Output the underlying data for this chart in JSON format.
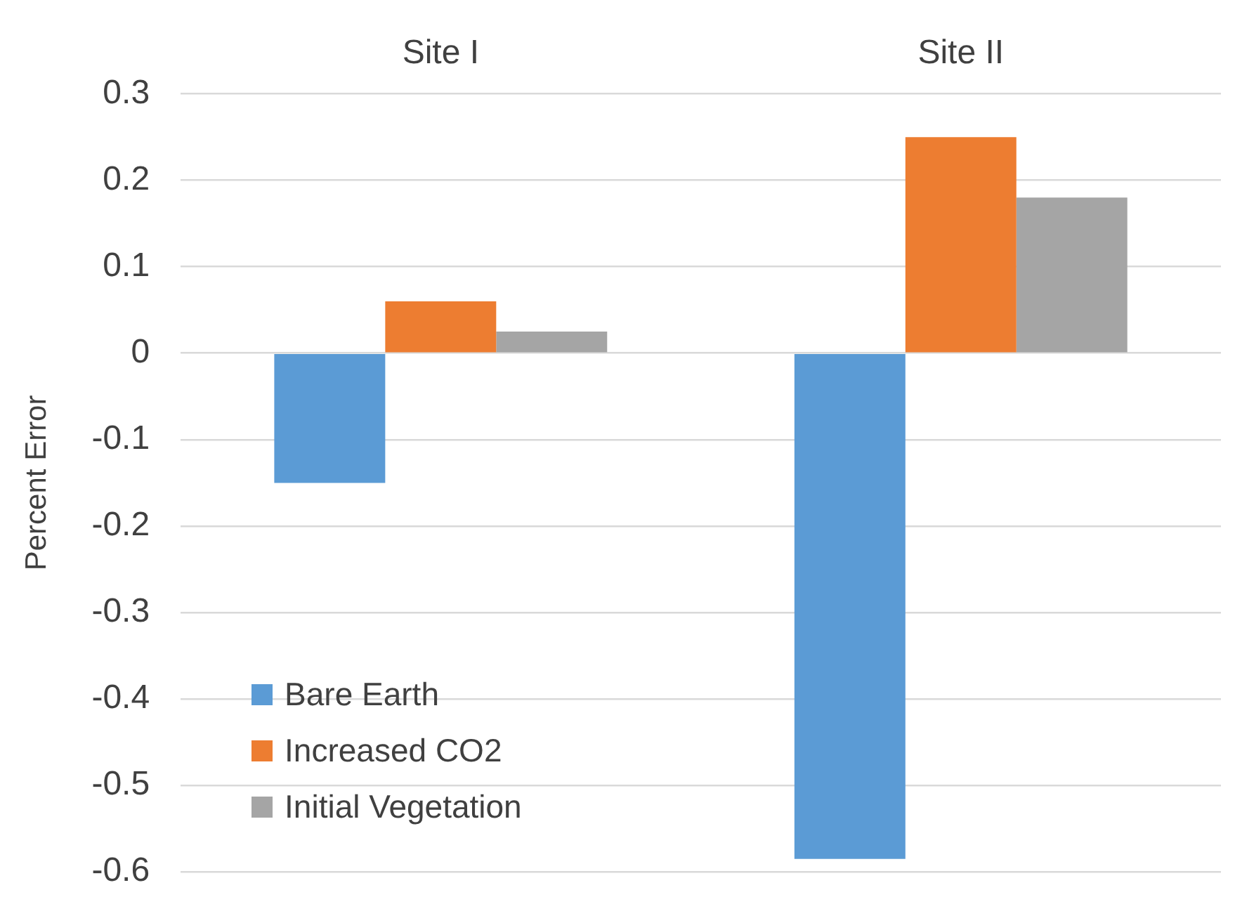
{
  "chart_data": {
    "type": "bar",
    "ylabel": "Percent Error",
    "categories": [
      "Site I",
      "Site II"
    ],
    "series": [
      {
        "name": "Bare Earth",
        "color": "#5b9bd5",
        "values": [
          -0.15,
          -0.585
        ]
      },
      {
        "name": "Increased CO2",
        "color": "#ed7d31",
        "values": [
          0.06,
          0.25
        ]
      },
      {
        "name": "Initial Vegetation",
        "color": "#a5a5a5",
        "values": [
          0.025,
          0.18
        ]
      }
    ],
    "ylim": [
      -0.6,
      0.3
    ],
    "yticks": [
      -0.6,
      -0.5,
      -0.4,
      -0.3,
      -0.2,
      -0.1,
      0,
      0.1,
      0.2,
      0.3
    ],
    "grid": "y",
    "legend": "bottom left"
  }
}
